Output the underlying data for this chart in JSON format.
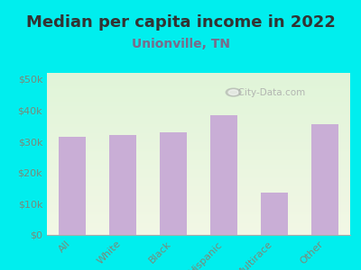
{
  "title": "Median per capita income in 2022",
  "subtitle": "Unionville, TN",
  "categories": [
    "All",
    "White",
    "Black",
    "Hispanic",
    "Multirace",
    "Other"
  ],
  "values": [
    31500,
    32000,
    33000,
    38500,
    13500,
    35500
  ],
  "bar_color": "#c9aed6",
  "bg_outer": "#00eeee",
  "title_color": "#333333",
  "subtitle_color": "#7a6a8a",
  "tick_label_color": "#7a8a7a",
  "ylim": [
    0,
    52000
  ],
  "yticks": [
    0,
    10000,
    20000,
    30000,
    40000,
    50000
  ],
  "ytick_labels": [
    "$0",
    "$10k",
    "$20k",
    "$30k",
    "$40k",
    "$50k"
  ],
  "watermark": "City-Data.com",
  "title_fontsize": 13,
  "subtitle_fontsize": 10,
  "tick_fontsize": 8
}
